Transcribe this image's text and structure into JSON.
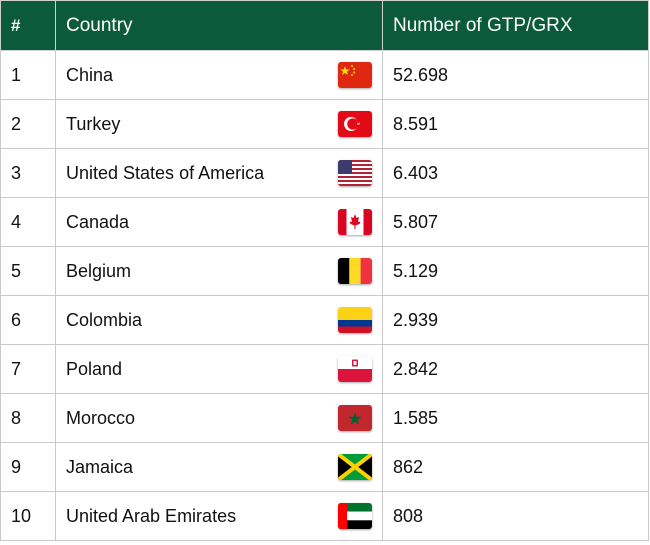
{
  "table": {
    "headers": {
      "rank": "#",
      "country": "Country",
      "count": "Number of GTP/GRX"
    },
    "colors": {
      "header_bg": "#0b5a3c",
      "header_text": "#ffffff",
      "grid": "#c9c9c9"
    },
    "rows": [
      {
        "rank": "1",
        "country": "China",
        "flag": "china-flag-icon",
        "count": "52.698"
      },
      {
        "rank": "2",
        "country": "Turkey",
        "flag": "turkey-flag-icon",
        "count": "8.591"
      },
      {
        "rank": "3",
        "country": "United States of America",
        "flag": "usa-flag-icon",
        "count": "6.403"
      },
      {
        "rank": "4",
        "country": "Canada",
        "flag": "canada-flag-icon",
        "count": "5.807"
      },
      {
        "rank": "5",
        "country": "Belgium",
        "flag": "belgium-flag-icon",
        "count": "5.129"
      },
      {
        "rank": "6",
        "country": "Colombia",
        "flag": "colombia-flag-icon",
        "count": "2.939"
      },
      {
        "rank": "7",
        "country": "Poland",
        "flag": "poland-flag-icon",
        "count": "2.842"
      },
      {
        "rank": "8",
        "country": "Morocco",
        "flag": "morocco-flag-icon",
        "count": "1.585"
      },
      {
        "rank": "9",
        "country": "Jamaica",
        "flag": "jamaica-flag-icon",
        "count": "862"
      },
      {
        "rank": "10",
        "country": "United Arab Emirates",
        "flag": "uae-flag-icon",
        "count": "808"
      }
    ]
  }
}
